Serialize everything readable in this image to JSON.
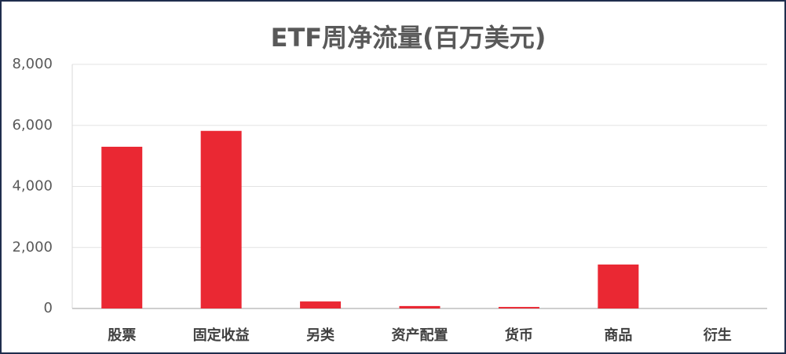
{
  "chart_data": {
    "type": "bar",
    "title": "ETF周净流量(百万美元)",
    "categories": [
      "股票",
      "固定收益",
      "另类",
      "资产配置",
      "货币",
      "商品",
      "衍生"
    ],
    "values": [
      5300,
      5820,
      230,
      80,
      50,
      1440,
      0
    ],
    "color": "#ea2833",
    "ylim": [
      0,
      8000
    ],
    "yticks": [
      0,
      {
        "value": 2000,
        "label": "2,000"
      },
      {
        "value": 4000,
        "label": "4,000"
      },
      {
        "value": 6000,
        "label": "6,000"
      },
      {
        "value": 8000,
        "label": "8,000"
      }
    ],
    "grid": true
  }
}
